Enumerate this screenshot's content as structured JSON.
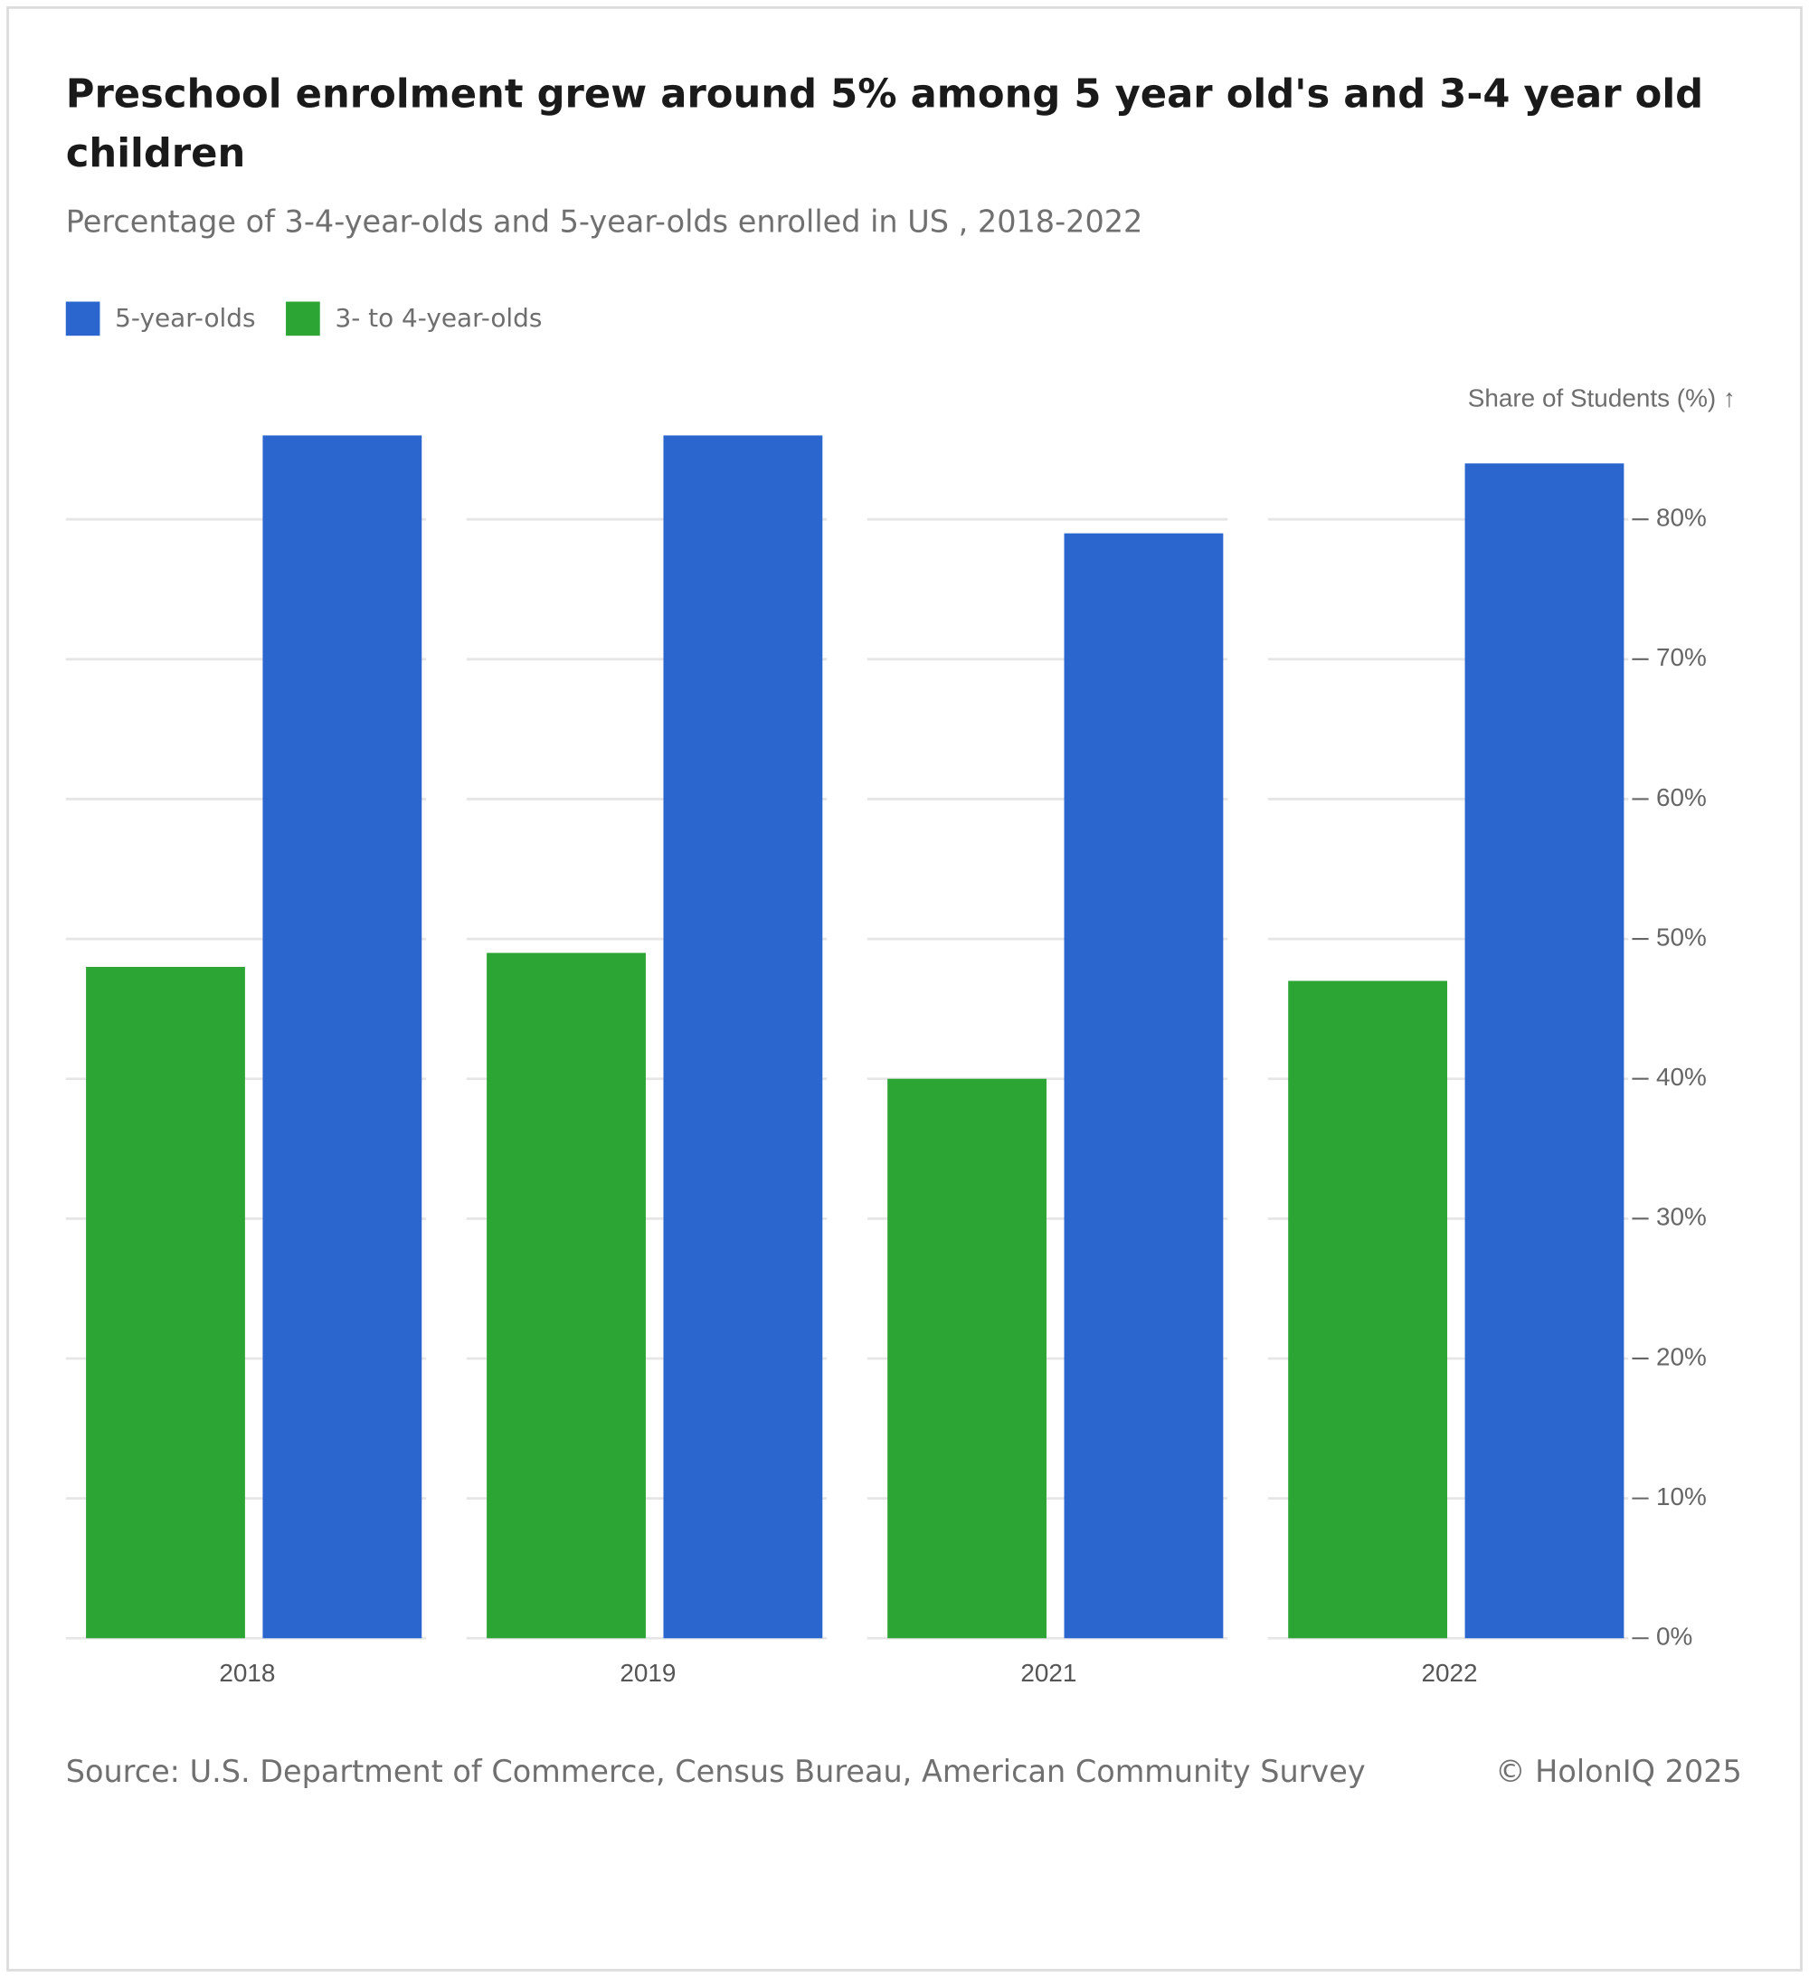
{
  "chart_data": {
    "type": "bar",
    "title": "Preschool enrolment grew around 5% among 5 year old's and 3-4 year old children",
    "subtitle": "Percentage of 3-4-year-olds and 5-year-olds enrolled in US , 2018-2022",
    "y_axis_label": "Share of Students (%) ↑",
    "categories": [
      "2018",
      "2019",
      "2021",
      "2022"
    ],
    "series": [
      {
        "name": "5-year-olds",
        "color": "#2b66cf",
        "values": [
          86,
          86,
          79,
          84
        ]
      },
      {
        "name": "3- to 4-year-olds",
        "color": "#2ca535",
        "values": [
          48,
          49,
          40,
          47
        ]
      }
    ],
    "ylim": [
      0,
      86
    ],
    "yticks": [
      {
        "value": 0,
        "label": "0%"
      },
      {
        "value": 10,
        "label": "10%"
      },
      {
        "value": 20,
        "label": "20%"
      },
      {
        "value": 30,
        "label": "30%"
      },
      {
        "value": 40,
        "label": "40%"
      },
      {
        "value": 50,
        "label": "50%"
      },
      {
        "value": 60,
        "label": "60%"
      },
      {
        "value": 70,
        "label": "70%"
      },
      {
        "value": 80,
        "label": "80%"
      }
    ],
    "grid": true,
    "source": "Source: U.S. Department of Commerce, Census Bureau, American Community Survey",
    "copyright": "© HolonIQ 2025"
  }
}
